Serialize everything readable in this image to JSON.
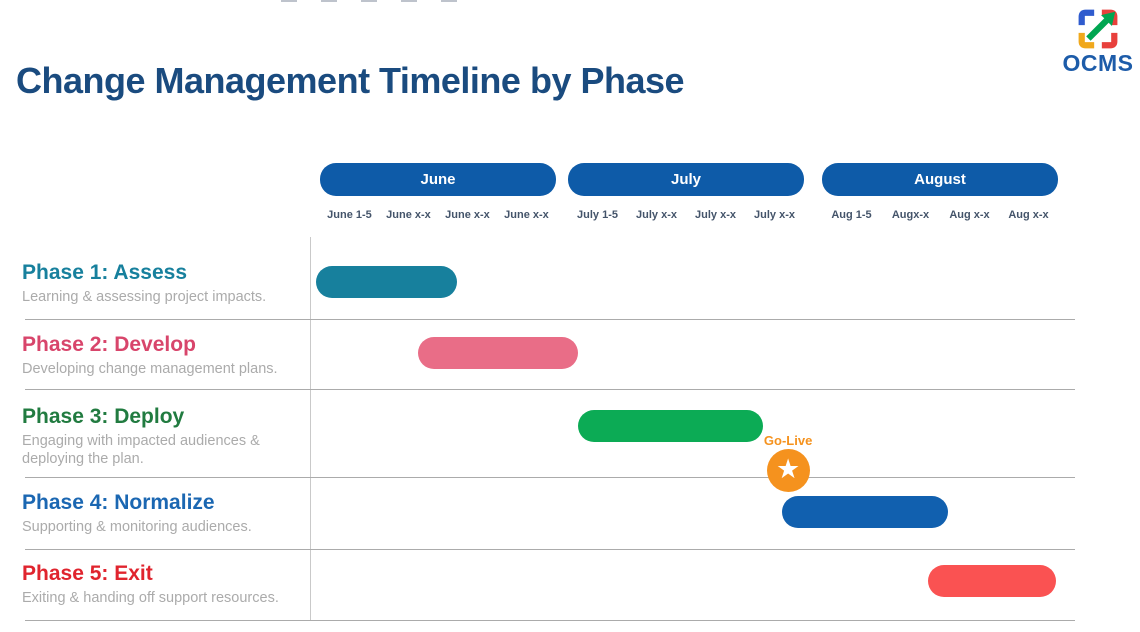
{
  "page": {
    "title": "Change Management Timeline by Phase",
    "brand": "OCMS"
  },
  "logo": {
    "text": "OCMS",
    "icon": "ocms-arrow-square"
  },
  "theme": {
    "title_color": "#1A4B7F",
    "month_pill_bg": "#0E5BA8",
    "month_pill_text": "#FFFFFF",
    "week_label_color": "#44546A",
    "subtitle_color": "#ABABAB",
    "grid_line_color": "#ABABAB",
    "divider_color": "#C9C9C9",
    "logo_blue": "#2F5BCE",
    "logo_red": "#E8403C",
    "logo_yellow": "#F0A81C",
    "logo_green": "#00A651",
    "logo_text_color": "#1D5CA9"
  },
  "chart_data": {
    "type": "bar",
    "variant": "gantt-timeline",
    "title": "Change Management Timeline by Phase",
    "x_axis": {
      "unit": "week",
      "total_weeks": 12,
      "months": [
        {
          "label": "June",
          "weeks": [
            "June 1-5",
            "June x-x",
            "June x-x",
            "June x-x"
          ]
        },
        {
          "label": "July",
          "weeks": [
            "July 1-5",
            "July x-x",
            "July x-x",
            "July x-x"
          ]
        },
        {
          "label": "August",
          "weeks": [
            "Aug 1-5",
            "Augx-x",
            "Aug x-x",
            "Aug x-x"
          ]
        }
      ]
    },
    "phases": [
      {
        "name": "Phase 1: Assess",
        "desc_lines": [
          "Learning & assessing project impacts."
        ],
        "bar_color": "#17809D",
        "title_color": "#17809D",
        "start_week": 0.1,
        "end_week": 2.3
      },
      {
        "name": "Phase 2: Develop",
        "desc_lines": [
          "Developing change management plans."
        ],
        "bar_color": "#E96D87",
        "title_color": "#D8456B",
        "start_week": 1.7,
        "end_week": 4.2
      },
      {
        "name": "Phase 3: Deploy",
        "desc_lines": [
          "Engaging with impacted audiences &",
          "deploying the plan."
        ],
        "bar_color": "#0CAB55",
        "title_color": "#217B40",
        "start_week": 4.2,
        "end_week": 7.1
      },
      {
        "name": "Phase 4: Normalize",
        "desc_lines": [
          "Supporting & monitoring audiences."
        ],
        "bar_color": "#1160AF",
        "title_color": "#1B67B2",
        "start_week": 7.4,
        "end_week": 10.0
      },
      {
        "name": "Phase 5: Exit",
        "desc_lines": [
          "Exiting & handing off support resources."
        ],
        "bar_color": "#FA5252",
        "title_color": "#E0242E",
        "start_week": 9.7,
        "end_week": 11.7
      }
    ],
    "milestone": {
      "label": "Go-Live",
      "icon": "★",
      "week": 7.5,
      "color": "#F5921E",
      "attached_to": "Phase 3: Deploy"
    }
  }
}
